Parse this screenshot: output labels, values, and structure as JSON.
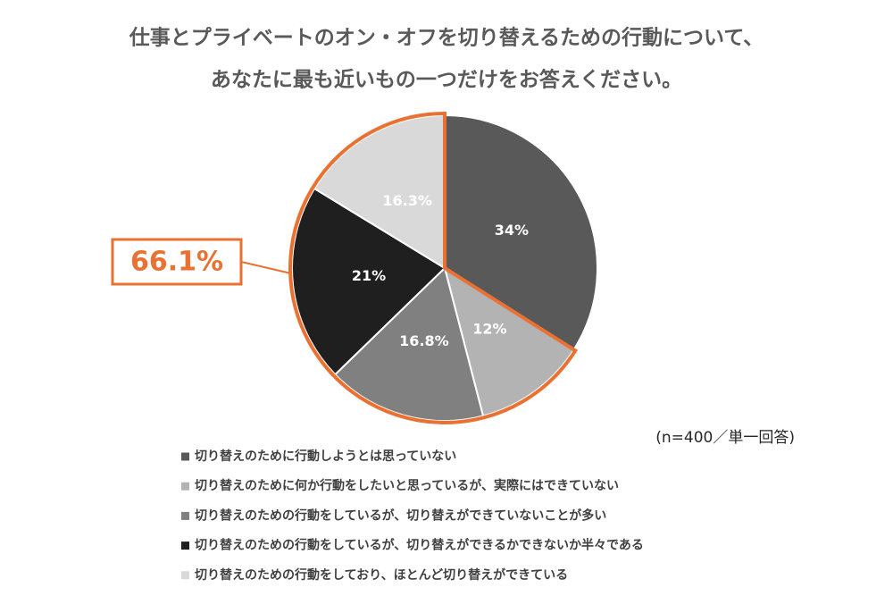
{
  "chart_data": {
    "type": "pie",
    "title": [
      "仕事とプライベートのオン・オフを切り替えるための行動について、",
      "あなたに最も近いもの一つだけをお答えください。"
    ],
    "categories": [
      "切り替えのために行動しようとは思っていない",
      "切り替えのために何か行動をしたいと思っているが、実際にはできていない",
      "切り替えのための行動をしているが、切り替えができていないことが多い",
      "切り替えのための行動をしているが、切り替えができるかできないか半々である",
      "切り替えのための行動をしており、ほとんど切り替えができている"
    ],
    "values": [
      34,
      12,
      16.8,
      21,
      16.3
    ],
    "value_labels": [
      "34%",
      "12%",
      "16.8%",
      "21%",
      "16.3%"
    ],
    "colors": [
      "#595959",
      "#b3b3b3",
      "#808080",
      "#1f1f1f",
      "#d9d9d9"
    ],
    "annotation": "66.1%",
    "note": "(n=400／単一回答)",
    "legend": "bottom"
  }
}
